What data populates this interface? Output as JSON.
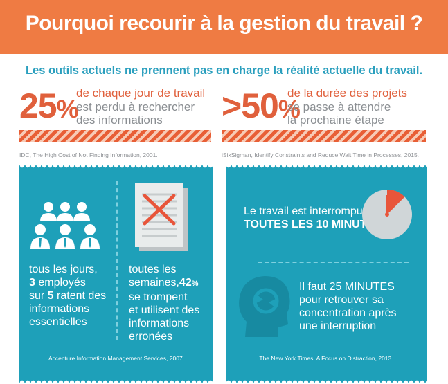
{
  "header": {
    "title": "Pourquoi recourir à la gestion du travail ?"
  },
  "subtitle": "Les outils actuels ne prennent pas en charge la réalité actuelle du travail.",
  "stat_left": {
    "figure": "25",
    "percent": "%",
    "lines": [
      "de chaque jour de travail",
      "est perdu à rechercher",
      "des informations"
    ],
    "source": "IDC, The High Cost of Not Finding Information, 2001."
  },
  "stat_right": {
    "figure": ">50",
    "percent": "%",
    "lines": [
      "de la durée des projets",
      "se passe à attendre",
      "la prochaine étape"
    ],
    "source": "iSixSigman, Identify Constraints and Reduce Wait Time in Processes, 2015."
  },
  "panel_left": {
    "col1": {
      "l1": "tous les jours,",
      "n1": "3",
      "l2": " employés",
      "l3a": "sur ",
      "n2": "5",
      "l3b": " ratent des",
      "l4": "informations",
      "l5": "essentielles"
    },
    "col2": {
      "l1": "toutes les",
      "l2a": "semaines,",
      "n1": "42",
      "pct": "%",
      "l3": "se trompent",
      "l4": "et utilisent des",
      "l5": "informations",
      "l6": "erronées"
    },
    "source": "Accenture Information Management Services, 2007."
  },
  "panel_right": {
    "block1": {
      "l1": "Le travail est interrompu",
      "l2": "TOUTES LES 10 MINUTES"
    },
    "block2": {
      "l1": "Il faut 25 MINUTES",
      "l2": "pour retrouver sa",
      "l3": "concentration après",
      "l4": "une interruption"
    },
    "source": "The New York Times, A Focus on Distraction, 2013."
  },
  "colors": {
    "orange": "#ef7b43",
    "teal": "#1ea0b9",
    "blue_text": "#2a9fbe"
  },
  "icons": [
    "people-group-icon",
    "crossed-document-icon",
    "clock-icon",
    "head-refresh-icon"
  ]
}
